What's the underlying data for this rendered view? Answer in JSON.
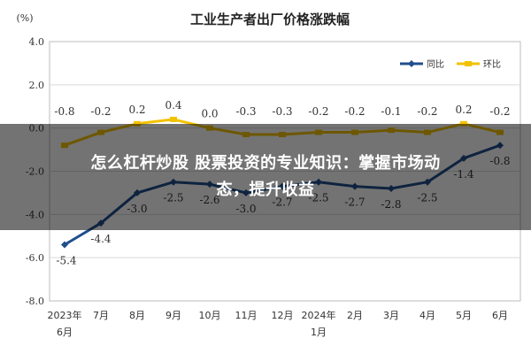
{
  "chart_data": {
    "type": "line",
    "title": "工业生产者出厂价格涨跌幅",
    "unit_label": "(%)",
    "ylim": [
      -8.0,
      4.0
    ],
    "yticks": [
      "4.0",
      "2.0",
      "0.0",
      "-2.0",
      "-4.0",
      "-6.0",
      "-8.0"
    ],
    "grid": true,
    "legend_position": "top-right",
    "categories": [
      [
        "2023年",
        "6月"
      ],
      [
        "7月"
      ],
      [
        "8月"
      ],
      [
        "9月"
      ],
      [
        "10月"
      ],
      [
        "11月"
      ],
      [
        "12月"
      ],
      [
        "2024年",
        "1月"
      ],
      [
        "2月"
      ],
      [
        "3月"
      ],
      [
        "4月"
      ],
      [
        "5月"
      ],
      [
        "6月"
      ]
    ],
    "series": [
      {
        "name": "同比",
        "color": "#1f4e8c",
        "values": [
          -5.4,
          -4.4,
          -3.0,
          -2.5,
          -2.6,
          -3.0,
          -2.7,
          -2.5,
          -2.7,
          -2.8,
          -2.5,
          -1.4,
          -0.8
        ],
        "labels": [
          "-5.4",
          "-4.4",
          "-3.0",
          "-2.5",
          "-2.6",
          "-3.0",
          "-2.7",
          "-2.5",
          "-2.7",
          "-2.8",
          "-2.5",
          "-1.4",
          "-0.8"
        ]
      },
      {
        "name": "环比",
        "color": "#f2c200",
        "values": [
          -0.8,
          -0.2,
          0.2,
          0.4,
          0.0,
          -0.3,
          -0.3,
          -0.2,
          -0.2,
          -0.1,
          -0.2,
          0.2,
          -0.2
        ],
        "labels": [
          "-0.8",
          "-0.2",
          "0.2",
          "0.4",
          "0.0",
          "-0.3",
          "-0.3",
          "-0.2",
          "-0.2",
          "-0.1",
          "-0.2",
          "0.2",
          "-0.2"
        ]
      }
    ]
  },
  "banner": {
    "line1": "怎么杠杆炒股 股票投资的专业知识：掌握市场动",
    "line2": "态，提升收益"
  }
}
